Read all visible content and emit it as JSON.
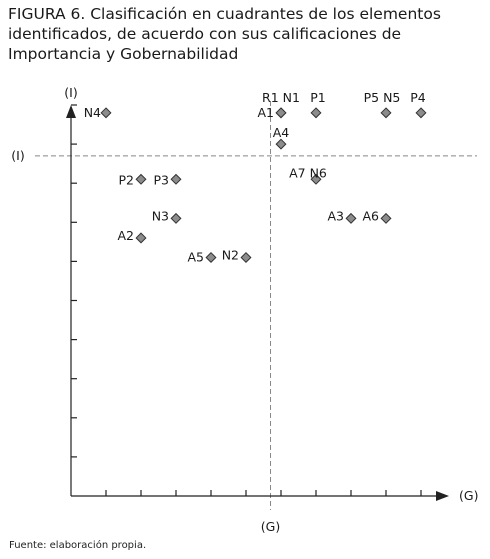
{
  "figure": {
    "title": "FIGURA 6. Clasificación en cuadrantes de los elementos identificados, de acuerdo con sus calificaciones de Importancia y Gobernabilidad",
    "source": "Fuente: elaboración propia."
  },
  "colors": {
    "marker_fill": "#8c8c8c",
    "marker_stroke": "#333333",
    "axis": "#222222",
    "reference_line": "#888888"
  },
  "chart_data": {
    "type": "scatter",
    "title": "",
    "xlabel": "(G)",
    "ylabel": "(I)",
    "x_reference_label": "(G)",
    "y_reference_label": "(I)",
    "xlim": [
      0,
      10.8
    ],
    "ylim": [
      0,
      10
    ],
    "x_reference": 5.7,
    "y_reference": 8.7,
    "x_ticks": [
      1,
      2,
      3,
      4,
      5,
      6,
      7,
      8,
      9,
      10
    ],
    "y_ticks": [
      1,
      2,
      3,
      4,
      5,
      6,
      7,
      8,
      9,
      10
    ],
    "grid": false,
    "legend": "none",
    "marker": "diamond",
    "points": [
      {
        "label": "N4",
        "x": 1,
        "y": 9.8
      },
      {
        "label": "R1 N1",
        "x": 6,
        "y": 9.8
      },
      {
        "label": "A1",
        "x": 6,
        "y": 9.8
      },
      {
        "label": "P1",
        "x": 7,
        "y": 9.8
      },
      {
        "label": "P5 N5",
        "x": 9,
        "y": 9.8
      },
      {
        "label": "P4",
        "x": 10,
        "y": 9.8
      },
      {
        "label": "A4",
        "x": 6,
        "y": 9
      },
      {
        "label": "A7 N6",
        "x": 7,
        "y": 8.1
      },
      {
        "label": "P2",
        "x": 2,
        "y": 8.1
      },
      {
        "label": "P3",
        "x": 3,
        "y": 8.1
      },
      {
        "label": "N3",
        "x": 3,
        "y": 7.1
      },
      {
        "label": "A3",
        "x": 8,
        "y": 7.1
      },
      {
        "label": "A6",
        "x": 9,
        "y": 7.1
      },
      {
        "label": "A2",
        "x": 2,
        "y": 6.6
      },
      {
        "label": "A5",
        "x": 4,
        "y": 6.1
      },
      {
        "label": "N2",
        "x": 5,
        "y": 6.1
      }
    ]
  }
}
